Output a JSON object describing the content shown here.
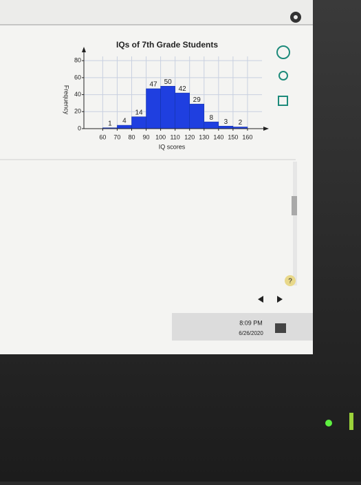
{
  "chart_data": {
    "type": "histogram",
    "title": "IQs of 7th Grade Students",
    "x_label": "IQ scores",
    "y_label": "Frequency",
    "bins": [
      60,
      70,
      80,
      90,
      100,
      110,
      120,
      130,
      140,
      150,
      160
    ],
    "values": [
      1,
      4,
      14,
      47,
      50,
      42,
      29,
      8,
      3,
      2
    ],
    "color": "#1f3fe0",
    "xlim": [
      47,
      170
    ],
    "xticks": [
      60,
      70,
      80,
      90,
      100,
      110,
      120,
      130,
      140,
      150,
      160
    ],
    "ylim": [
      0,
      85
    ],
    "yticks": [
      0,
      20,
      40,
      60,
      80
    ],
    "grid": true
  },
  "help": "?",
  "taskbar": {
    "time": "8:09 PM",
    "date": "6/26/2020"
  }
}
